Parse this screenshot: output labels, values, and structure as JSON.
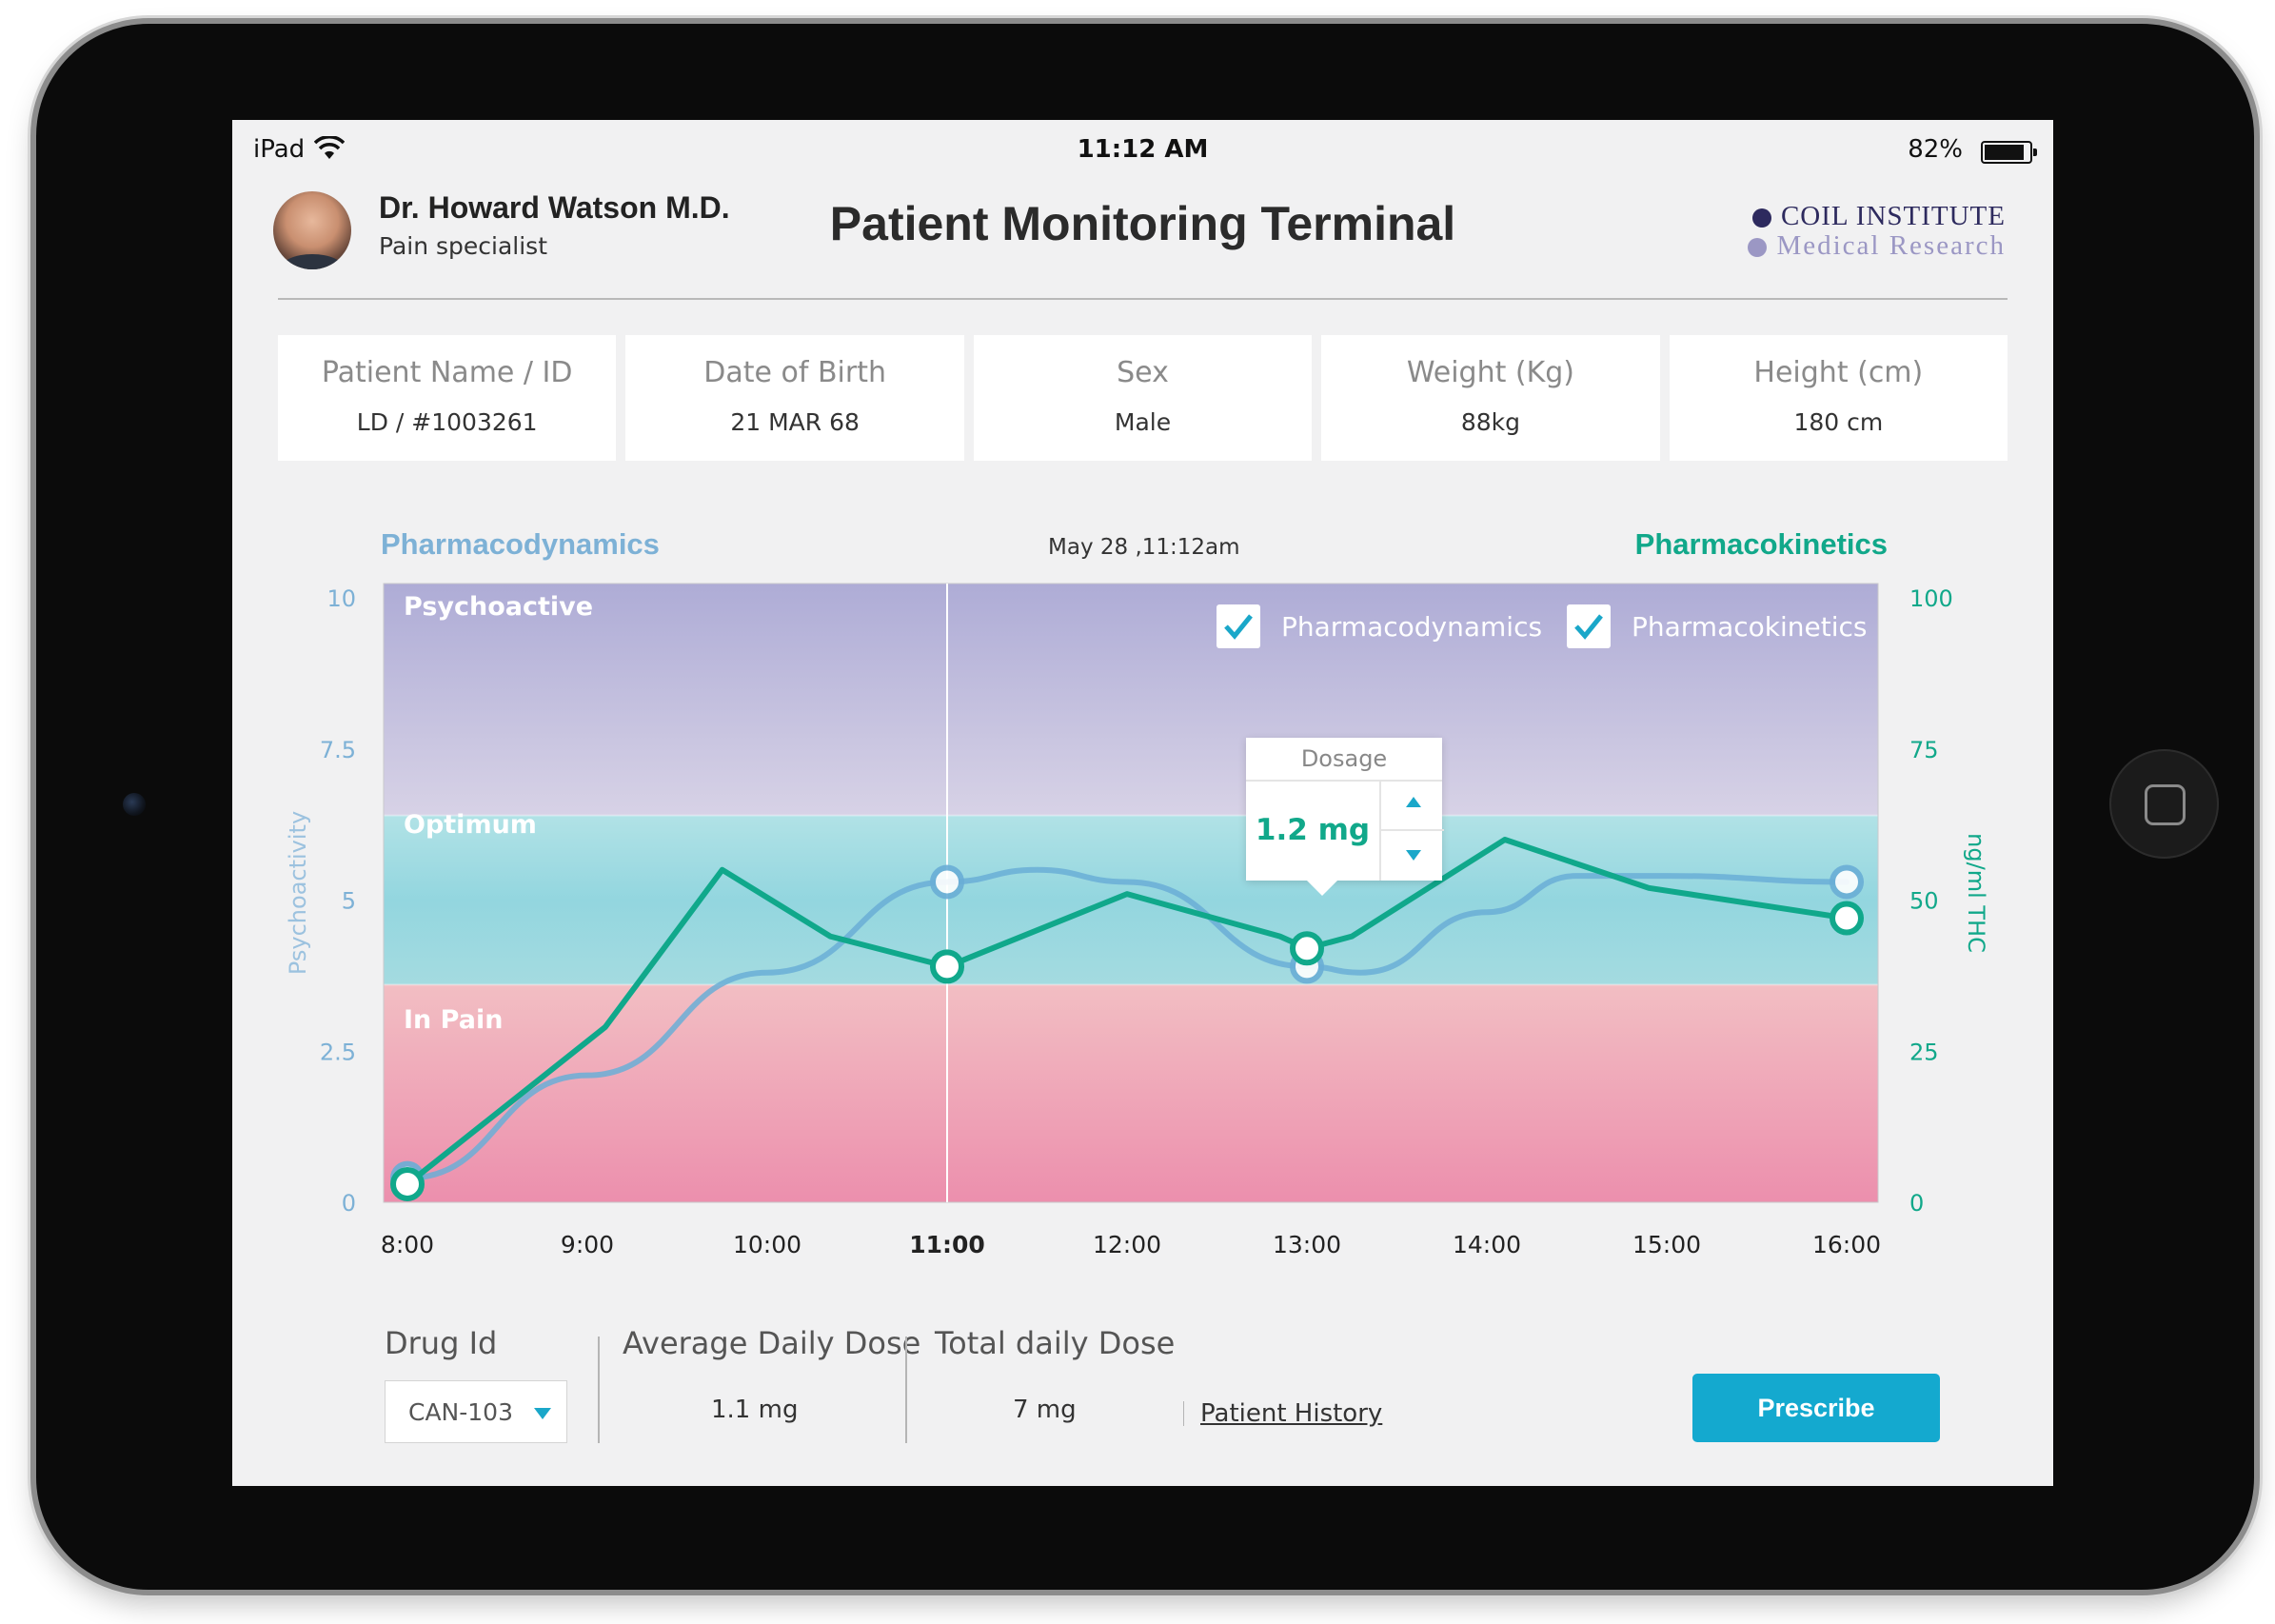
{
  "status_bar": {
    "device": "iPad",
    "time": "11:12 AM",
    "battery": "82%"
  },
  "header": {
    "doctor_name": "Dr. Howard Watson M.D.",
    "doctor_role": "Pain specialist",
    "title": "Patient Monitoring Terminal",
    "institute_line1": "COIL INSTITUTE",
    "institute_line2": "Medical Research"
  },
  "patient": [
    {
      "label": "Patient Name / ID",
      "value": "LD / #1003261"
    },
    {
      "label": "Date of Birth",
      "value": "21 MAR 68"
    },
    {
      "label": "Sex",
      "value": "Male"
    },
    {
      "label": "Weight (Kg)",
      "value": "88kg"
    },
    {
      "label": "Height (cm)",
      "value": "180 cm"
    }
  ],
  "chart_header": {
    "left": "Pharmacodynamics",
    "date": "May 28  ,11:12am",
    "right": "Pharmacokinetics"
  },
  "toggles": [
    {
      "label": "Pharmacodynamics",
      "checked": true
    },
    {
      "label": "Pharmacokinetics",
      "checked": true
    }
  ],
  "zones": {
    "top": "Psychoactive",
    "mid": "Optimum",
    "low": "In Pain"
  },
  "dosage": {
    "label": "Dosage",
    "value": "1.2 mg"
  },
  "chart_data": {
    "type": "line",
    "x": [
      "8:00",
      "9:00",
      "10:00",
      "11:00",
      "12:00",
      "13:00",
      "14:00",
      "15:00",
      "16:00"
    ],
    "current_x": "11:00",
    "y_left": {
      "label": "Psychoactivity",
      "ticks": [
        "10",
        "7.5",
        "5",
        "2.5",
        "0"
      ],
      "range": [
        0,
        10
      ]
    },
    "y_right": {
      "label": "ng/ml THC",
      "ticks": [
        "100",
        "75",
        "50",
        "25",
        "0"
      ],
      "range": [
        0,
        100
      ]
    },
    "bands": [
      {
        "name": "Psychoactive",
        "from": 6.4,
        "to": 10
      },
      {
        "name": "Optimum",
        "from": 3.6,
        "to": 6.4
      },
      {
        "name": "In Pain",
        "from": 0,
        "to": 3.6
      }
    ],
    "series": [
      {
        "name": "Pharmacodynamics",
        "color": "#6aaed6",
        "points": [
          [
            8.0,
            0.4
          ],
          [
            9.0,
            2.1
          ],
          [
            10.0,
            3.8
          ],
          [
            11.0,
            5.3
          ],
          [
            11.5,
            5.5
          ],
          [
            12.0,
            5.3
          ],
          [
            13.0,
            3.9
          ],
          [
            13.3,
            3.8
          ],
          [
            14.0,
            4.8
          ],
          [
            14.5,
            5.4
          ],
          [
            15.0,
            5.4
          ],
          [
            16.0,
            5.3
          ]
        ],
        "markers": [
          [
            8.0,
            0.4
          ],
          [
            11.0,
            5.3
          ],
          [
            13.0,
            3.9
          ],
          [
            16.0,
            5.3
          ]
        ]
      },
      {
        "name": "Pharmacokinetics",
        "color": "#10a88b",
        "points": [
          [
            8.0,
            3
          ],
          [
            9.1,
            29
          ],
          [
            9.75,
            55
          ],
          [
            10.35,
            44
          ],
          [
            11.0,
            39
          ],
          [
            12.0,
            51
          ],
          [
            12.85,
            44
          ],
          [
            13.0,
            42
          ],
          [
            13.25,
            44
          ],
          [
            14.1,
            60
          ],
          [
            14.9,
            52
          ],
          [
            16.0,
            47
          ]
        ],
        "markers": [
          [
            8.0,
            3
          ],
          [
            11.0,
            39
          ],
          [
            13.0,
            42
          ],
          [
            16.0,
            47
          ]
        ]
      }
    ]
  },
  "controls": {
    "drug_label": "Drug Id",
    "drug_value": "CAN-103",
    "avg_label": "Average Daily Dose",
    "avg_value": "1.1 mg",
    "total_label": "Total daily Dose",
    "total_value": "7 mg",
    "history_link": "Patient History",
    "prescribe_label": "Prescribe"
  },
  "colors": {
    "accent": "#14a9cf",
    "teal": "#10a88b",
    "blue": "#6aaed6",
    "institute": "#2d2a5e"
  }
}
